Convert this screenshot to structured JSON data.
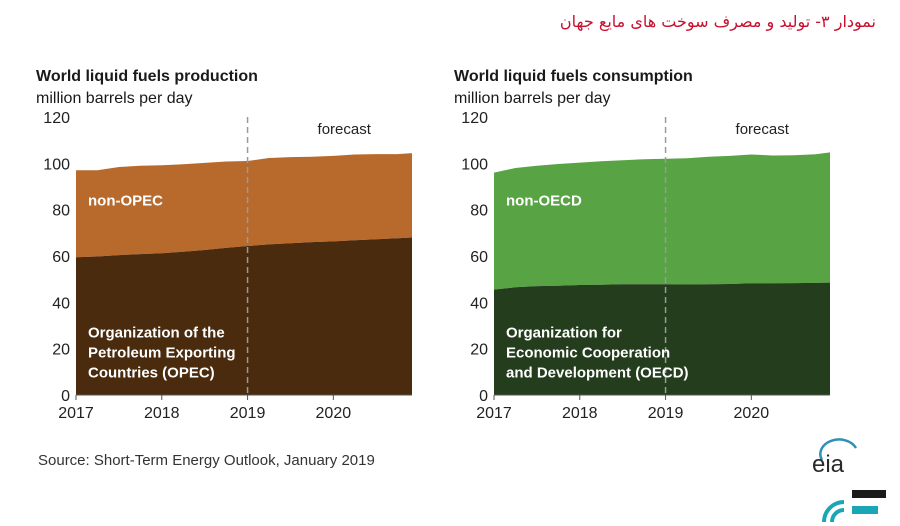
{
  "caption": "نمودار ۳- تولید و مصرف سوخت های مایع جهان",
  "source": "Source: Short-Term Energy Outlook, January 2019",
  "logo": {
    "text": "eia"
  },
  "colors": {
    "opec": "#4a2b0e",
    "non_opec": "#b86a2c",
    "oecd": "#233d1d",
    "non_oecd": "#58a444",
    "divider": "#9a9a9a"
  },
  "chart_data": [
    {
      "type": "area",
      "title": "World liquid fuels production",
      "subtitle": "million barrels per day",
      "xlabel": "",
      "ylabel": "",
      "ylim": [
        0,
        120
      ],
      "xlim": [
        2017,
        2020.917
      ],
      "y_ticks": [
        "0",
        "20",
        "40",
        "60",
        "80",
        "100",
        "120"
      ],
      "x_ticks": [
        "2017",
        "2018",
        "2019",
        "2020"
      ],
      "forecast_start": 2019,
      "forecast_label": "forecast",
      "grid": false,
      "series": [
        {
          "name": "non-OPEC",
          "label_lines": [
            "non-OPEC"
          ],
          "color": "#b86a2c",
          "x": [
            2017.0,
            2017.25,
            2017.5,
            2017.75,
            2018.0,
            2018.25,
            2018.5,
            2018.75,
            2019.0,
            2019.25,
            2019.5,
            2019.75,
            2020.0,
            2020.25,
            2020.5,
            2020.75,
            2020.917
          ],
          "values": [
            37.5,
            37.2,
            38.0,
            38.2,
            38.0,
            37.8,
            37.6,
            37.3,
            36.7,
            37.3,
            37.2,
            36.8,
            36.9,
            37.0,
            36.8,
            36.3,
            36.4
          ]
        },
        {
          "name": "Organization of the Petroleum Exporting Countries (OPEC)",
          "label_lines": [
            "Organization of the",
            "Petroleum Exporting",
            "Countries (OPEC)"
          ],
          "color": "#4a2b0e",
          "x": [
            2017.0,
            2017.25,
            2017.5,
            2017.75,
            2018.0,
            2018.25,
            2018.5,
            2018.75,
            2019.0,
            2019.25,
            2019.5,
            2019.75,
            2020.0,
            2020.25,
            2020.5,
            2020.75,
            2020.917
          ],
          "values": [
            59.5,
            59.8,
            60.4,
            60.8,
            61.2,
            61.8,
            62.6,
            63.5,
            64.3,
            65.0,
            65.5,
            66.0,
            66.3,
            66.8,
            67.2,
            67.7,
            68.0
          ]
        }
      ]
    },
    {
      "type": "area",
      "title": "World liquid fuels consumption",
      "subtitle": "million barrels per day",
      "xlabel": "",
      "ylabel": "",
      "ylim": [
        0,
        120
      ],
      "xlim": [
        2017,
        2020.917
      ],
      "y_ticks": [
        "0",
        "20",
        "40",
        "60",
        "80",
        "100",
        "120"
      ],
      "x_ticks": [
        "2017",
        "2018",
        "2019",
        "2020"
      ],
      "forecast_start": 2019,
      "forecast_label": "forecast",
      "grid": false,
      "series": [
        {
          "name": "non-OECD",
          "label_lines": [
            "non-OECD"
          ],
          "color": "#58a444",
          "x": [
            2017.0,
            2017.25,
            2017.5,
            2017.75,
            2018.0,
            2018.25,
            2018.5,
            2018.75,
            2019.0,
            2019.25,
            2019.5,
            2019.75,
            2020.0,
            2020.25,
            2020.5,
            2020.75,
            2020.917
          ],
          "values": [
            50.5,
            51.5,
            52.0,
            52.5,
            52.8,
            53.3,
            53.5,
            54.0,
            54.2,
            54.5,
            55.0,
            55.3,
            55.6,
            55.2,
            55.2,
            55.5,
            56.2
          ]
        },
        {
          "name": "Organization for Economic Cooperation and Development (OECD)",
          "label_lines": [
            "Organization for",
            "Economic Cooperation",
            "and Development (OECD)"
          ],
          "color": "#233d1d",
          "x": [
            2017.0,
            2017.25,
            2017.5,
            2017.75,
            2018.0,
            2018.25,
            2018.5,
            2018.75,
            2019.0,
            2019.25,
            2019.5,
            2019.75,
            2020.0,
            2020.25,
            2020.5,
            2020.75,
            2020.917
          ],
          "values": [
            45.5,
            46.5,
            47.0,
            47.2,
            47.5,
            47.6,
            47.8,
            47.8,
            47.8,
            47.7,
            47.8,
            47.9,
            48.2,
            48.2,
            48.3,
            48.4,
            48.5
          ]
        }
      ]
    }
  ]
}
